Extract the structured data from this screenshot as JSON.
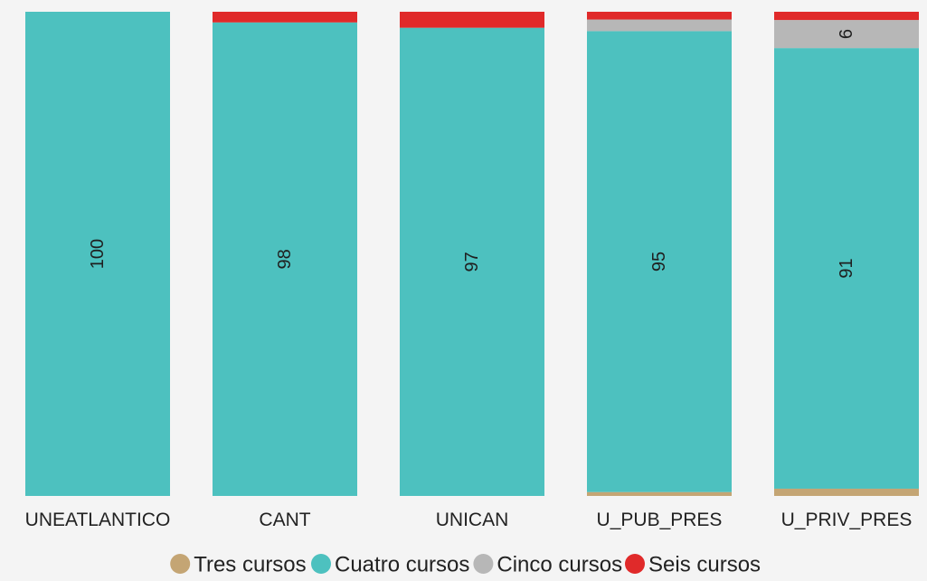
{
  "chart_data": {
    "type": "bar",
    "stacked": true,
    "percent": true,
    "categories": [
      "UNEATLANTICO",
      "CANT",
      "UNICAN",
      "U_PUB_PRES",
      "U_PRIV_PRES"
    ],
    "series": [
      {
        "name": "Tres cursos",
        "color": "#c4a574",
        "values": [
          0,
          0,
          0,
          0.8,
          1.5
        ]
      },
      {
        "name": "Cuatro cursos",
        "color": "#4dc1bf",
        "values": [
          100,
          97.8,
          96.7,
          95.2,
          91.0
        ]
      },
      {
        "name": "Cinco cursos",
        "color": "#b7b7b7",
        "values": [
          0,
          0,
          0,
          2.4,
          5.8
        ]
      },
      {
        "name": "Seis cursos",
        "color": "#e02a2a",
        "values": [
          0,
          2.2,
          3.3,
          1.6,
          1.7
        ]
      }
    ],
    "data_labels": [
      {
        "category": "UNEATLANTICO",
        "series": "Cuatro cursos",
        "text": "100"
      },
      {
        "category": "CANT",
        "series": "Cuatro cursos",
        "text": "98"
      },
      {
        "category": "UNICAN",
        "series": "Cuatro cursos",
        "text": "97"
      },
      {
        "category": "U_PUB_PRES",
        "series": "Cuatro cursos",
        "text": "95"
      },
      {
        "category": "U_PRIV_PRES",
        "series": "Cuatro cursos",
        "text": "91"
      },
      {
        "category": "U_PRIV_PRES",
        "series": "Cinco cursos",
        "text": "6"
      }
    ],
    "ylim": [
      0,
      100
    ],
    "legend_position": "bottom",
    "grid": false,
    "title": "",
    "xlabel": "",
    "ylabel": ""
  }
}
